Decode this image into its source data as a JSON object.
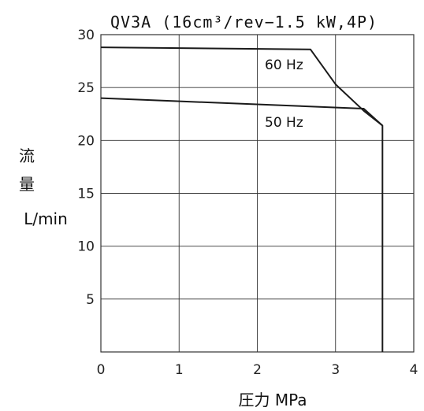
{
  "chart_data": {
    "type": "line",
    "title": "QV3A (16cm³/rev−1.5 kW,4P)",
    "xlabel": "圧力 MPa",
    "ylabel_lines": [
      "流",
      "量",
      "L/min"
    ],
    "xlim": [
      0,
      4
    ],
    "ylim": [
      0,
      30
    ],
    "x_ticks": [
      "0",
      "1",
      "2",
      "3",
      "4"
    ],
    "y_ticks": [
      "30",
      "25",
      "20",
      "15",
      "10",
      "5"
    ],
    "grid": true,
    "series": [
      {
        "name": "60 Hz",
        "points": [
          [
            0,
            28.8
          ],
          [
            2.68,
            28.6
          ],
          [
            3.0,
            25.3
          ],
          [
            3.36,
            22.8
          ],
          [
            3.6,
            21.4
          ],
          [
            3.6,
            0
          ]
        ]
      },
      {
        "name": "50 Hz",
        "points": [
          [
            0,
            24.0
          ],
          [
            3.36,
            23.0
          ],
          [
            3.6,
            21.4
          ]
        ]
      }
    ],
    "colors": {
      "line": "#1a1a1a",
      "grid": "#333333"
    }
  }
}
